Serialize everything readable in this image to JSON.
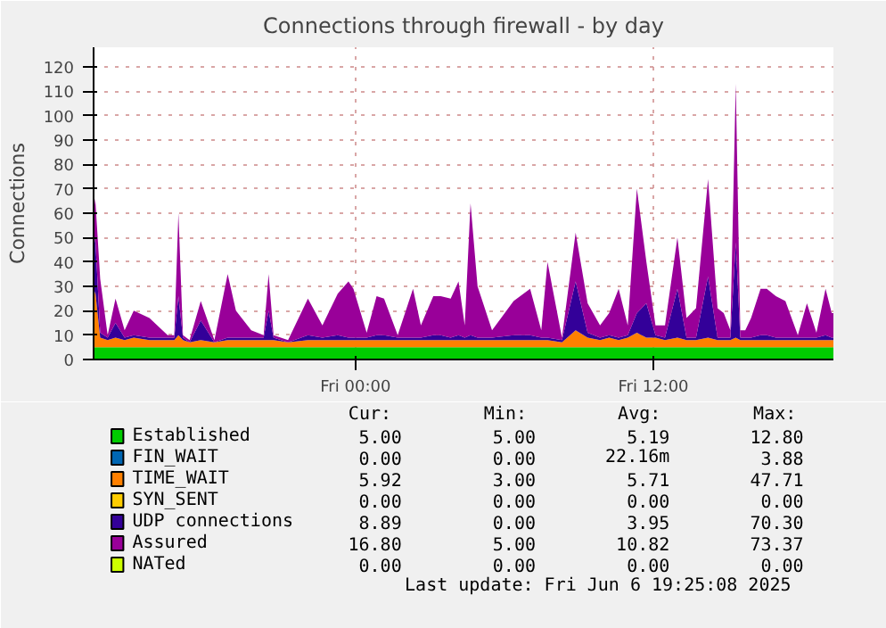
{
  "chart_data": {
    "type": "area",
    "stacked": true,
    "title": "Connections through firewall - by day",
    "ylabel": "Connections",
    "x": [
      "2025-06-05T13:27",
      "2025-06-05T13:31",
      "2025-06-05T13:43",
      "2025-06-05T14:01",
      "2025-06-05T14:20",
      "2025-06-05T14:42",
      "2025-06-05T15:04",
      "2025-06-05T15:42",
      "2025-06-05T16:26",
      "2025-06-05T16:42",
      "2025-06-05T16:52",
      "2025-06-05T17:03",
      "2025-06-05T17:19",
      "2025-06-05T17:46",
      "2025-06-05T18:19",
      "2025-06-05T18:51",
      "2025-06-05T19:11",
      "2025-06-05T19:48",
      "2025-06-05T20:18",
      "2025-06-05T20:30",
      "2025-06-05T20:42",
      "2025-06-05T21:17",
      "2025-06-05T22:05",
      "2025-06-05T22:40",
      "2025-06-05T23:17",
      "2025-06-05T23:43",
      "2025-06-05T23:55",
      "2025-06-06T00:27",
      "2025-06-06T00:51",
      "2025-06-06T01:09",
      "2025-06-06T01:42",
      "2025-06-06T02:19",
      "2025-06-06T02:38",
      "2025-06-06T03:08",
      "2025-06-06T03:26",
      "2025-06-06T03:50",
      "2025-06-06T04:09",
      "2025-06-06T04:24",
      "2025-06-06T04:38",
      "2025-06-06T04:55",
      "2025-06-06T05:30",
      "2025-06-06T06:22",
      "2025-06-06T07:02",
      "2025-06-06T07:29",
      "2025-06-06T07:44",
      "2025-06-06T08:19",
      "2025-06-06T08:52",
      "2025-06-06T09:21",
      "2025-06-06T09:51",
      "2025-06-06T10:13",
      "2025-06-06T10:36",
      "2025-06-06T10:58",
      "2025-06-06T11:20",
      "2025-06-06T11:43",
      "2025-06-06T12:05",
      "2025-06-06T12:28",
      "2025-06-06T12:58",
      "2025-06-06T13:20",
      "2025-06-06T13:43",
      "2025-06-06T14:12",
      "2025-06-06T14:35",
      "2025-06-06T14:50",
      "2025-06-06T15:06",
      "2025-06-06T15:19",
      "2025-06-06T15:30",
      "2025-06-06T15:42",
      "2025-06-06T15:56",
      "2025-06-06T16:19",
      "2025-06-06T16:34",
      "2025-06-06T16:56",
      "2025-06-06T17:19",
      "2025-06-06T17:49",
      "2025-06-06T18:11",
      "2025-06-06T18:34",
      "2025-06-06T18:56",
      "2025-06-06T19:11",
      "2025-06-06T19:15"
    ],
    "series": [
      {
        "name": "Established",
        "color": "#00cc00",
        "values": [
          5,
          5,
          5,
          5,
          5,
          5,
          5,
          5,
          5,
          5,
          5,
          5,
          5,
          5,
          5,
          5,
          5,
          5,
          5,
          5,
          5,
          5,
          5,
          5,
          5,
          5,
          5,
          5,
          5,
          5,
          5,
          5,
          5,
          5,
          5,
          5,
          5,
          5,
          5,
          5,
          5,
          5,
          5,
          5,
          5,
          5,
          5,
          5,
          5,
          5,
          5,
          5,
          5,
          5,
          5,
          5,
          5,
          5,
          5,
          5,
          5,
          5,
          5,
          5,
          5,
          5,
          5,
          5,
          5,
          5,
          5,
          5,
          5,
          5,
          5,
          5,
          5
        ]
      },
      {
        "name": "FIN_WAIT",
        "color": "#0066b3",
        "values": [
          null,
          null,
          null,
          null,
          null,
          null,
          null,
          null,
          null,
          null,
          null,
          null,
          null,
          null,
          null,
          null,
          null,
          null,
          null,
          null,
          null,
          null,
          null,
          null,
          null,
          null,
          null,
          null,
          null,
          null,
          null,
          null,
          null,
          null,
          null,
          null,
          null,
          null,
          null,
          null,
          null,
          null,
          null,
          null,
          null,
          null,
          null,
          null,
          null,
          null,
          null,
          null,
          null,
          null,
          null,
          null,
          null,
          null,
          null,
          null,
          null,
          null,
          null,
          null,
          null,
          null,
          null,
          null,
          null,
          null,
          null,
          null,
          null,
          null,
          null,
          null,
          null
        ]
      },
      {
        "name": "TIME_WAIT",
        "color": "#ff8000",
        "values": [
          20,
          23,
          4,
          3,
          4,
          3,
          4,
          3,
          3,
          3,
          5,
          3,
          2,
          3,
          2,
          3,
          3,
          3,
          3,
          3,
          3,
          2,
          3,
          3,
          3,
          3,
          3,
          3,
          3,
          3,
          3,
          3,
          3,
          3,
          3,
          3,
          3,
          3,
          3,
          3,
          3,
          3,
          3,
          3,
          3,
          2,
          7,
          4,
          3,
          4,
          3,
          4,
          6,
          4,
          4,
          3,
          4,
          3,
          3,
          4,
          3,
          3,
          3,
          4,
          3,
          3,
          3,
          3,
          3,
          3,
          3,
          3,
          3,
          3,
          3,
          3,
          3
        ]
      },
      {
        "name": "SYN_SENT",
        "color": "#ffcc00",
        "values": [
          null,
          null,
          null,
          null,
          null,
          null,
          null,
          null,
          null,
          null,
          null,
          null,
          null,
          null,
          null,
          null,
          null,
          null,
          null,
          null,
          null,
          null,
          null,
          null,
          null,
          null,
          null,
          null,
          null,
          null,
          null,
          null,
          null,
          null,
          null,
          null,
          null,
          null,
          null,
          null,
          null,
          null,
          null,
          null,
          null,
          null,
          null,
          null,
          null,
          null,
          null,
          null,
          null,
          null,
          null,
          null,
          null,
          null,
          null,
          null,
          null,
          null,
          null,
          null,
          null,
          null,
          null,
          null,
          null,
          null,
          null,
          null,
          null,
          null,
          null,
          null,
          null
        ]
      },
      {
        "name": "UDP connections",
        "color": "#330099",
        "values": [
          20,
          22,
          2,
          1,
          6,
          1,
          1,
          1,
          1,
          1,
          16,
          1,
          0,
          8,
          0,
          1,
          1,
          1,
          1,
          12,
          1,
          0,
          2,
          1,
          2,
          1,
          1,
          1,
          2,
          2,
          1,
          1,
          1,
          2,
          2,
          1,
          2,
          1,
          2,
          1,
          1,
          2,
          2,
          1,
          1,
          1,
          20,
          2,
          1,
          1,
          1,
          1,
          8,
          14,
          1,
          1,
          20,
          1,
          1,
          25,
          1,
          1,
          1,
          39,
          1,
          1,
          1,
          2,
          2,
          1,
          1,
          1,
          1,
          1,
          2,
          1,
          1
        ]
      },
      {
        "name": "Assured",
        "color": "#990099",
        "values": [
          15,
          16,
          22,
          1,
          10,
          3,
          10,
          8,
          1,
          1,
          34,
          1,
          1,
          8,
          1,
          26,
          11,
          3,
          1,
          15,
          1,
          1,
          15,
          5,
          17,
          23,
          20,
          2,
          16,
          15,
          1,
          20,
          5,
          16,
          16,
          16,
          22,
          5,
          54,
          21,
          3,
          14,
          19,
          3,
          31,
          1,
          20,
          12,
          5,
          9,
          20,
          4,
          51,
          17,
          4,
          5,
          21,
          8,
          12,
          40,
          12,
          10,
          3,
          65,
          3,
          3,
          8,
          19,
          19,
          17,
          15,
          1,
          14,
          2,
          19,
          10,
          10
        ]
      },
      {
        "name": "NATed",
        "color": "#ccff00",
        "values": [
          null,
          null,
          null,
          null,
          null,
          null,
          null,
          null,
          null,
          null,
          null,
          null,
          null,
          null,
          null,
          null,
          null,
          null,
          null,
          null,
          null,
          null,
          null,
          null,
          null,
          null,
          null,
          null,
          null,
          null,
          null,
          null,
          null,
          null,
          null,
          null,
          null,
          null,
          null,
          null,
          null,
          null,
          null,
          null,
          null,
          null,
          null,
          null,
          null,
          null,
          null,
          null,
          null,
          null,
          null,
          null,
          null,
          null,
          null,
          null,
          null,
          null,
          null,
          null,
          null,
          null,
          null,
          null,
          null,
          null,
          null,
          null,
          null,
          null,
          null,
          null,
          null
        ]
      }
    ],
    "xlim": [
      "2025-06-05T13:27",
      "2025-06-06T19:15"
    ],
    "ylim": [
      0,
      128
    ],
    "xticks": [
      {
        "value": "2025-06-06T00:00",
        "label": "Fri 00:00"
      },
      {
        "value": "2025-06-06T12:00",
        "label": "Fri 12:00"
      }
    ],
    "yticks": [
      0,
      10,
      20,
      30,
      40,
      50,
      60,
      70,
      80,
      90,
      100,
      110,
      120
    ],
    "grid": true,
    "legend": "bottom",
    "annotations": [
      "Cur:",
      "Min:",
      "Avg:",
      "Max:",
      "5.00",
      "5.00",
      "5.19",
      "12.80",
      "0.00",
      "0.00",
      "22.16m",
      "3.88",
      "5.92",
      "3.00",
      "5.71",
      "47.71",
      "0.00",
      "0.00",
      "0.00",
      "0.00",
      "8.89",
      "0.00",
      "3.95",
      "70.30",
      "16.80",
      "5.00",
      "10.82",
      "73.37",
      "0.00",
      "0.00",
      "0.00",
      "0.00",
      "Last update:  Fri Jun  6 19:25:08 2025"
    ]
  }
}
